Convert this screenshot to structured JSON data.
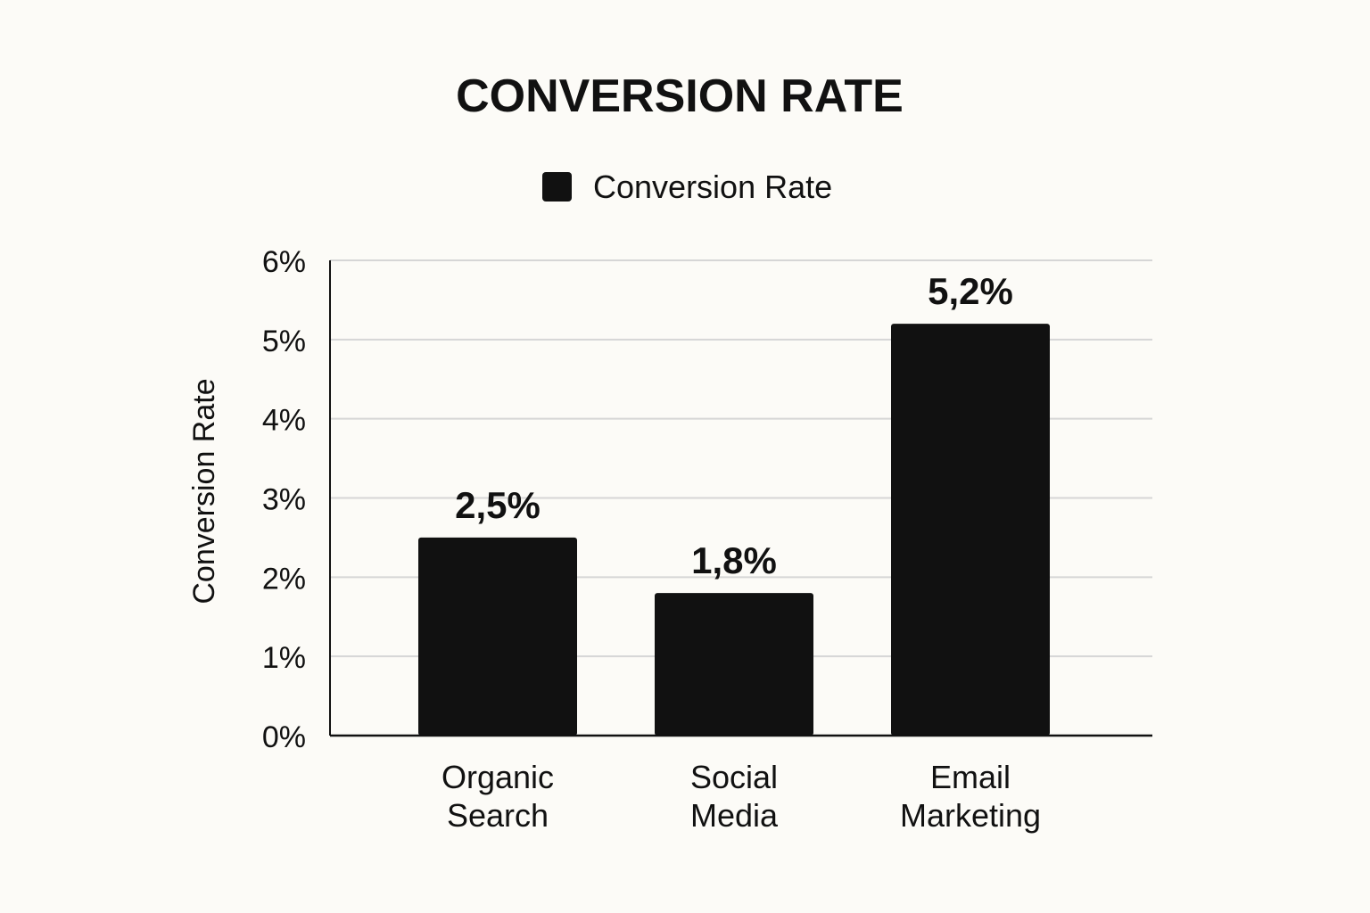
{
  "chart_data": {
    "type": "bar",
    "title": "CONVERSION RATE",
    "ylabel": "Conversion Rate",
    "xlabel": "",
    "categories": [
      [
        "Organic",
        "Search"
      ],
      [
        "Social",
        "Media"
      ],
      [
        "Email",
        "Marketing"
      ]
    ],
    "series": [
      {
        "name": "Conversion Rate",
        "values": [
          2.5,
          1.8,
          5.2
        ],
        "data_labels": [
          "2,5%",
          "1,8%",
          "5,2%"
        ],
        "color": "#111111"
      }
    ],
    "ylim": [
      0,
      6
    ],
    "yticks": [
      0,
      1,
      2,
      3,
      4,
      5,
      6
    ],
    "ytick_labels": [
      "0%",
      "1%",
      "2%",
      "3%",
      "4%",
      "5%",
      "6%"
    ],
    "grid": true,
    "legend_position": "top-center",
    "colors": {
      "background": "#fcfbf7",
      "grid": "#d6d6d6",
      "axis": "#111111",
      "text": "#111111"
    }
  }
}
